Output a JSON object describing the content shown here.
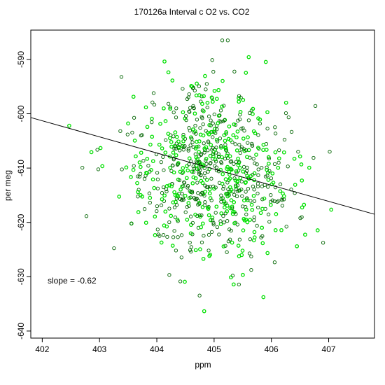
{
  "chart_data": {
    "type": "scatter",
    "title": "170126a   Interval c O2 vs. CO2",
    "xlabel": "ppm",
    "ylabel": "per meg",
    "xlim": [
      401.8,
      407.8
    ],
    "ylim": [
      -641.3,
      -584.6
    ],
    "x_ticks": [
      402,
      403,
      404,
      405,
      406,
      407
    ],
    "y_ticks": [
      -590,
      -600,
      -610,
      -620,
      -630,
      -640
    ],
    "grid": false,
    "annotation": "slope =  -0.62",
    "fit_line": {
      "slope": -0.62,
      "x": [
        401.8,
        407.8
      ],
      "y": [
        -600.7,
        -618.5
      ]
    },
    "series": [
      {
        "color": "#006400",
        "marker": "open-circle"
      },
      {
        "color": "#00e000",
        "marker": "open-circle"
      }
    ]
  }
}
